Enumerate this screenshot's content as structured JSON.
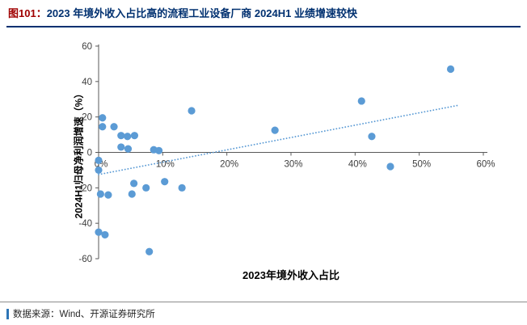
{
  "header": {
    "figure_label": "图101：",
    "title": "2023 年境外收入占比高的流程工业设备厂商 2024H1 业绩增速较快",
    "accent_color": "#A00000",
    "title_color": "#003070"
  },
  "chart_data": {
    "type": "scatter",
    "title": "",
    "xlabel": "2023年境外收入占比",
    "ylabel": "2024H1归母净利润增速（%）",
    "xlim": [
      0,
      60
    ],
    "ylim": [
      -60,
      60
    ],
    "x_ticks": [
      "0%",
      "10%",
      "20%",
      "30%",
      "40%",
      "50%",
      "60%"
    ],
    "x_tick_values": [
      0,
      10,
      20,
      30,
      40,
      50,
      60
    ],
    "y_ticks": [
      "-60",
      "-40",
      "-20",
      "0",
      "20",
      "40",
      "60"
    ],
    "y_tick_values": [
      -60,
      -40,
      -20,
      0,
      20,
      40,
      60
    ],
    "grid": false,
    "legend": false,
    "point_color": "#5B9BD5",
    "point_radius": 4.6,
    "axis_color": "#595959",
    "tick_color": "#404040",
    "trendline": {
      "type": "linear-dotted",
      "color": "#5B9BD5",
      "x": [
        0,
        56
      ],
      "y": [
        -12.5,
        26.5
      ]
    },
    "points": [
      {
        "x": 0.6,
        "y": 19.5
      },
      {
        "x": 0.6,
        "y": 14.5
      },
      {
        "x": 2.4,
        "y": 14.5
      },
      {
        "x": 3.5,
        "y": 9.5
      },
      {
        "x": 4.5,
        "y": 9
      },
      {
        "x": 5.6,
        "y": 9.5
      },
      {
        "x": 3.5,
        "y": 3
      },
      {
        "x": 4.6,
        "y": 2
      },
      {
        "x": 8.6,
        "y": 1.5
      },
      {
        "x": 9.4,
        "y": 1
      },
      {
        "x": 14.5,
        "y": 23.5
      },
      {
        "x": 27.5,
        "y": 12.5
      },
      {
        "x": 41,
        "y": 29
      },
      {
        "x": 42.6,
        "y": 9
      },
      {
        "x": 54.9,
        "y": 47
      },
      {
        "x": 45.5,
        "y": -8
      },
      {
        "x": 0,
        "y": -4.5
      },
      {
        "x": 0,
        "y": -10
      },
      {
        "x": 0.3,
        "y": -23.5
      },
      {
        "x": 1.5,
        "y": -24
      },
      {
        "x": 5.2,
        "y": -23.5
      },
      {
        "x": 5.5,
        "y": -17.5
      },
      {
        "x": 7.4,
        "y": -20
      },
      {
        "x": 10.3,
        "y": -16.5
      },
      {
        "x": 13,
        "y": -20
      },
      {
        "x": 0,
        "y": -45
      },
      {
        "x": 1,
        "y": -46.5
      },
      {
        "x": 7.9,
        "y": -56
      }
    ]
  },
  "footer": {
    "source": "数据来源：Wind、开源证券研究所",
    "accent_color": "#2E75B6"
  }
}
